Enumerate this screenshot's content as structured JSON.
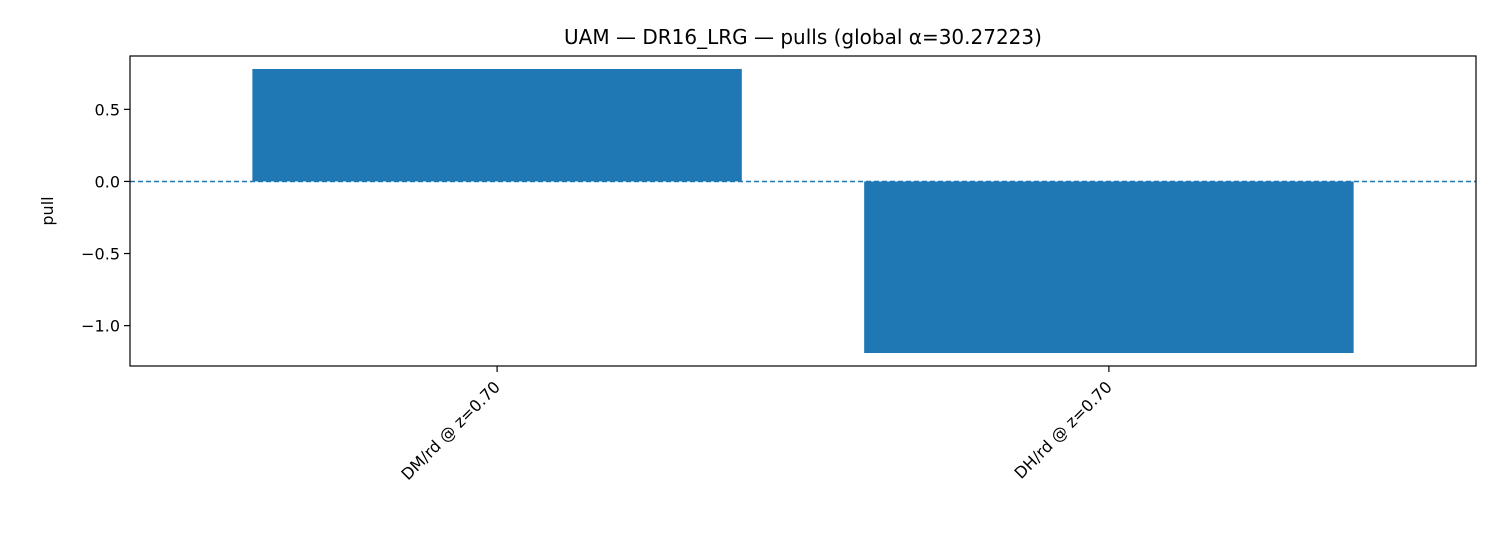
{
  "chart_data": {
    "type": "bar",
    "title": "UAM — DR16_LRG — pulls (global α=30.27223)",
    "xlabel": "",
    "ylabel": "pull",
    "categories": [
      "DM/rd @ z=0.70",
      "DH/rd @ z=0.70"
    ],
    "values": [
      0.78,
      -1.19
    ],
    "ylim": [
      -1.28,
      0.87
    ],
    "yticks": [
      0.5,
      0.0,
      -0.5,
      -1.0
    ],
    "ytick_labels": [
      "0.5",
      "0.0",
      "−0.5",
      "−1.0"
    ],
    "reference_line": {
      "y": 0.0,
      "style": "dashed"
    },
    "grid": false,
    "legend": "none",
    "colors": {
      "bar": "#1f77b4",
      "reference_line": "#1f77b4",
      "axes": "#000000",
      "text": "#000000",
      "background": "#ffffff"
    }
  }
}
